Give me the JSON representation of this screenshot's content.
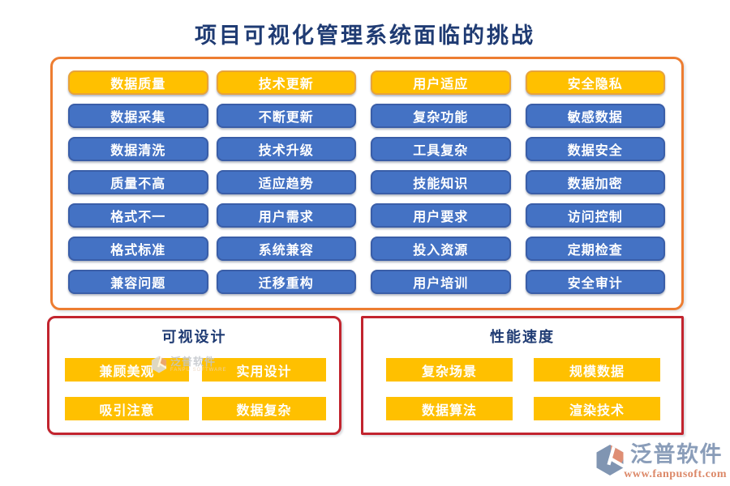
{
  "title": "项目可视化管理系统面临的挑战",
  "challenge_groups": [
    {
      "key": "data-quality",
      "header": "数据质量",
      "items": [
        "数据采集",
        "数据清洗",
        "质量不高",
        "格式不一",
        "格式标准",
        "兼容问题"
      ]
    },
    {
      "key": "tech-update",
      "header": "技术更新",
      "items": [
        "不断更新",
        "技术升级",
        "适应趋势",
        "用户需求",
        "系统兼容",
        "迁移重构"
      ]
    },
    {
      "key": "user-adaptation",
      "header": "用户适应",
      "items": [
        "复杂功能",
        "工具复杂",
        "技能知识",
        "用户要求",
        "投入资源",
        "用户培训"
      ]
    },
    {
      "key": "security-privacy",
      "header": "安全隐私",
      "items": [
        "敏感数据",
        "数据安全",
        "数据加密",
        "访问控制",
        "定期检查",
        "安全审计"
      ]
    }
  ],
  "bottom_sections": [
    {
      "key": "visual-design",
      "title": "可视设计",
      "items": [
        "兼顾美观",
        "实用设计",
        "吸引注意",
        "数据复杂"
      ]
    },
    {
      "key": "performance-speed",
      "title": "性能速度",
      "items": [
        "复杂场景",
        "规模数据",
        "数据算法",
        "渲染技术"
      ]
    }
  ],
  "watermark": {
    "text": "泛普软件",
    "subtext": "FANPU SOFTWARE"
  },
  "footer": {
    "brand": "泛普软件",
    "url": "www.fanpusoft.com"
  },
  "colors": {
    "title_navy": "#1F3B73",
    "button_blue": "#4472C4",
    "button_gold": "#FFC000",
    "panel_border_orange": "#ED7D31",
    "section_border_red": "#C2242E",
    "brand_blue_gray": "#8A9DB9",
    "brand_salmon": "#DC8868"
  }
}
